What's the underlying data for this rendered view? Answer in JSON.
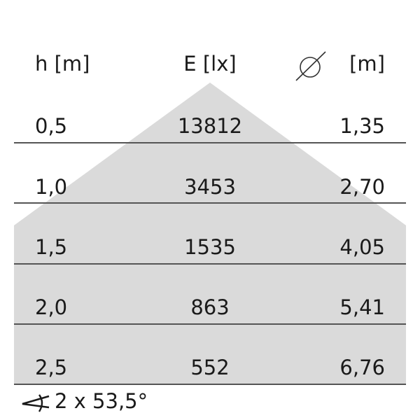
{
  "headers": {
    "height": "h [m]",
    "illuminance": "E [lx]",
    "diameter_unit": "[m]",
    "diameter_icon": "diameter-icon"
  },
  "rows": [
    {
      "h": "0,5",
      "e": "13812",
      "d": "1,35"
    },
    {
      "h": "1,0",
      "e": "3453",
      "d": "2,70"
    },
    {
      "h": "1,5",
      "e": "1535",
      "d": "4,05"
    },
    {
      "h": "2,0",
      "e": "863",
      "d": "5,41"
    },
    {
      "h": "2,5",
      "e": "552",
      "d": "6,76"
    }
  ],
  "beam_angle": {
    "icon": "angle-icon",
    "text": "2 x 53,5°"
  },
  "colors": {
    "cone_fill": "#dadada",
    "rule": "#555555",
    "text": "#1a1a1a"
  }
}
